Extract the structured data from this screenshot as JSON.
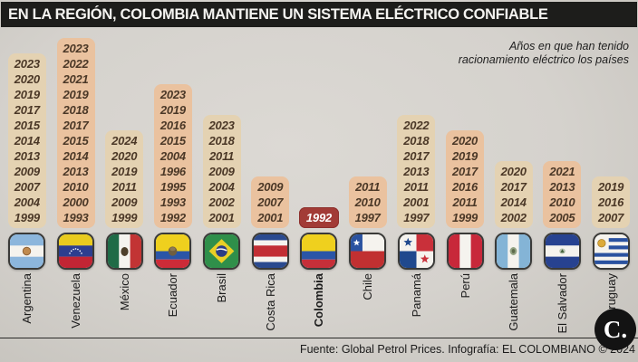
{
  "title": "EN LA REGIÓN, COLOMBIA MANTIENE UN SISTEMA ELÉCTRICO CONFIABLE",
  "annotation": {
    "line1": "Años en que han tenido",
    "line2": "racionamiento eléctrico los países"
  },
  "footer": "Fuente: Global Petrol Prices. Infografía: EL COLOMBIANO © 2024",
  "logo_text": "C.",
  "colors": {
    "background": "#d5d2cd",
    "title_bar": "#1d1d1b",
    "title_text": "#f4f3f0",
    "block_tan": "#e4d2b2",
    "block_salmon": "#eac29f",
    "block_highlight": "#a23b36",
    "year_text": "#4b3827",
    "highlight_year_text": "#ffffff"
  },
  "chart_data": {
    "type": "bar",
    "title": "EN LA REGIÓN, COLOMBIA MANTIENE UN SISTEMA ELÉCTRICO CONFIABLE",
    "subtitle": "Años en que han tenido racionamiento eléctrico los países",
    "categories": [
      "Argentina",
      "Venezuela",
      "México",
      "Ecuador",
      "Brasil",
      "Costa Rica",
      "Colombia",
      "Chile",
      "Panamá",
      "Perú",
      "Guatemala",
      "El Salvador",
      "Uruguay"
    ],
    "values": [
      11,
      12,
      6,
      9,
      7,
      3,
      1,
      3,
      7,
      6,
      4,
      4,
      3
    ],
    "values_note": "bar height = number of years with electricity rationing; each bar lists the years",
    "countries": [
      {
        "name": "Argentina",
        "flag": "argentina",
        "flag_icon": "argentina-flag-icon",
        "tone": "tan",
        "highlight": false,
        "years": [
          2023,
          2020,
          2019,
          2017,
          2015,
          2014,
          2013,
          2009,
          2007,
          2004,
          1999
        ]
      },
      {
        "name": "Venezuela",
        "flag": "venezuela",
        "flag_icon": "venezuela-flag-icon",
        "tone": "salmon",
        "highlight": false,
        "years": [
          2023,
          2022,
          2021,
          2019,
          2018,
          2017,
          2015,
          2014,
          2013,
          2010,
          2000,
          1993
        ]
      },
      {
        "name": "México",
        "flag": "mexico",
        "flag_icon": "mexico-flag-icon",
        "tone": "tan",
        "highlight": false,
        "years": [
          2024,
          2020,
          2019,
          2011,
          2009,
          1999
        ]
      },
      {
        "name": "Ecuador",
        "flag": "ecuador",
        "flag_icon": "ecuador-flag-icon",
        "tone": "salmon",
        "highlight": false,
        "years": [
          2023,
          2019,
          2016,
          2015,
          2004,
          1996,
          1995,
          1993,
          1992
        ]
      },
      {
        "name": "Brasil",
        "flag": "brasil",
        "flag_icon": "brasil-flag-icon",
        "tone": "tan",
        "highlight": false,
        "years": [
          2023,
          2018,
          2011,
          2009,
          2004,
          2002,
          2001
        ]
      },
      {
        "name": "Costa Rica",
        "flag": "costa-rica",
        "flag_icon": "costa-rica-flag-icon",
        "tone": "salmon",
        "highlight": false,
        "years": [
          2009,
          2007,
          2001
        ]
      },
      {
        "name": "Colombia",
        "flag": "colombia",
        "flag_icon": "colombia-flag-icon",
        "tone": "highlight",
        "highlight": true,
        "years": [
          1992
        ]
      },
      {
        "name": "Chile",
        "flag": "chile",
        "flag_icon": "chile-flag-icon",
        "tone": "salmon",
        "highlight": false,
        "years": [
          2011,
          2010,
          1997
        ]
      },
      {
        "name": "Panamá",
        "flag": "panama",
        "flag_icon": "panama-flag-icon",
        "tone": "tan",
        "highlight": false,
        "years": [
          2022,
          2018,
          2017,
          2013,
          2011,
          2001,
          1997
        ]
      },
      {
        "name": "Perú",
        "flag": "peru",
        "flag_icon": "peru-flag-icon",
        "tone": "salmon",
        "highlight": false,
        "years": [
          2020,
          2019,
          2017,
          2016,
          2011,
          1999
        ]
      },
      {
        "name": "Guatemala",
        "flag": "guatemala",
        "flag_icon": "guatemala-flag-icon",
        "tone": "tan",
        "highlight": false,
        "years": [
          2020,
          2017,
          2014,
          2002
        ]
      },
      {
        "name": "El Salvador",
        "flag": "el-salvador",
        "flag_icon": "el-salvador-flag-icon",
        "tone": "salmon",
        "highlight": false,
        "years": [
          2021,
          2013,
          2010,
          2005
        ]
      },
      {
        "name": "Uruguay",
        "flag": "uruguay",
        "flag_icon": "uruguay-flag-icon",
        "tone": "tan",
        "highlight": false,
        "years": [
          2019,
          2016,
          2007
        ]
      }
    ]
  }
}
